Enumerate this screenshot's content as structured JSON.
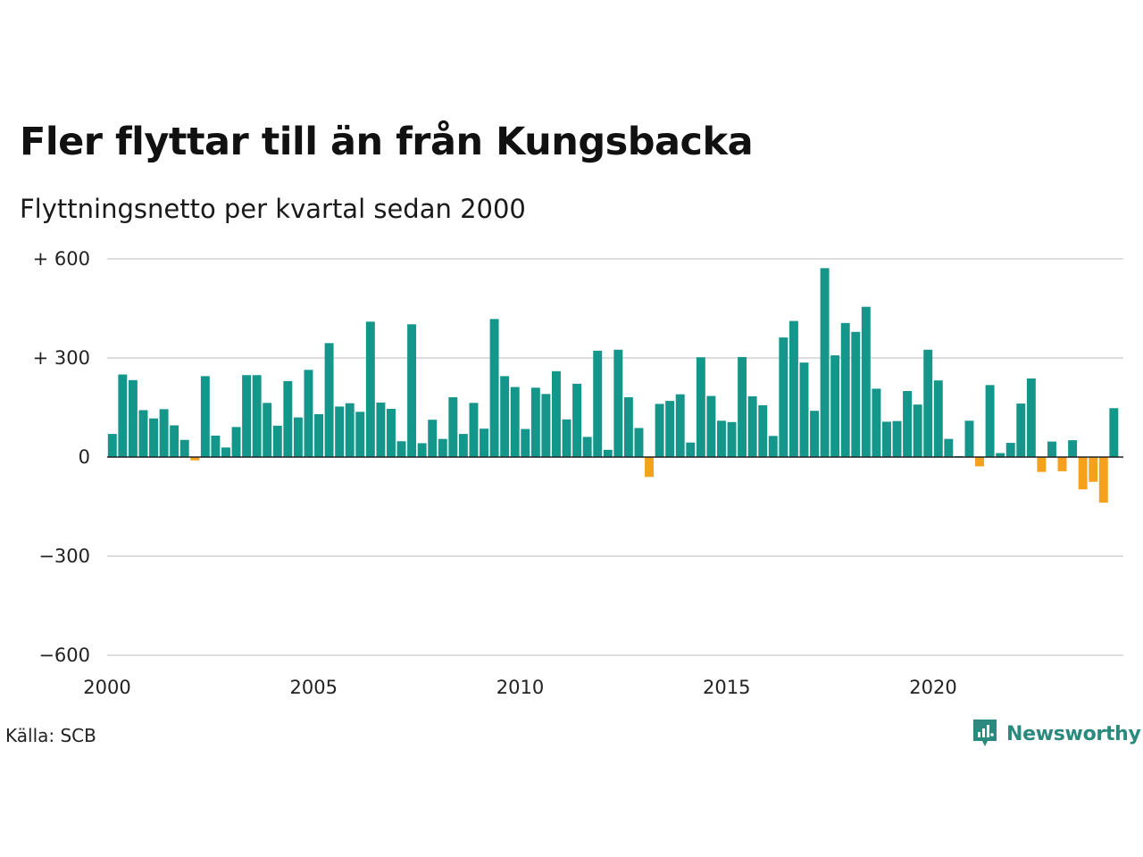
{
  "header": {
    "title": "Fler flyttar till än från Kungsbacka",
    "subtitle": "Flyttningsnetto per kvartal sedan 2000"
  },
  "footer": {
    "source": "Källa: SCB",
    "brand": "Newsworthy"
  },
  "colors": {
    "positive": "#15968a",
    "negative": "#f5a11c",
    "grid": "#dddddd",
    "baseline": "#222222",
    "brand": "#2a8a7d"
  },
  "icons": {
    "brand_logo": "newsworthy-logo-icon"
  },
  "chart_data": {
    "type": "bar",
    "title": "Fler flyttar till än från Kungsbacka",
    "subtitle": "Flyttningsnetto per kvartal sedan 2000",
    "xlabel": "",
    "ylabel": "",
    "ylim": [
      -600,
      600
    ],
    "yticks": [
      600,
      300,
      0,
      -300,
      -600
    ],
    "ytick_labels": [
      "+ 600",
      "+ 300",
      "0",
      "−300",
      "−600"
    ],
    "xlim": [
      2000,
      2024.75
    ],
    "xticks": [
      2000,
      2005,
      2010,
      2015,
      2020
    ],
    "xtick_labels": [
      "2000",
      "2005",
      "2010",
      "2015",
      "2020"
    ],
    "grid": true,
    "legend": "none",
    "series": [
      {
        "start": "2000 Q1",
        "frequency": "quarterly",
        "values": [
          70,
          250,
          233,
          142,
          117,
          145,
          96,
          52,
          -10,
          245,
          65,
          29,
          91,
          248,
          248,
          164,
          95,
          230,
          120,
          264,
          130,
          345,
          153,
          163,
          137,
          410,
          165,
          146,
          48,
          402,
          42,
          113,
          55,
          181,
          70,
          164,
          86,
          418,
          245,
          212,
          85,
          210,
          191,
          260,
          114,
          222,
          61,
          322,
          22,
          325,
          181,
          88,
          -60,
          161,
          170,
          190,
          44,
          302,
          185,
          110,
          106,
          303,
          184,
          157,
          64,
          362,
          412,
          286,
          140,
          572,
          308,
          406,
          379,
          455,
          207,
          107,
          109,
          200,
          159,
          325,
          232,
          55,
          3,
          110,
          -28,
          218,
          12,
          43,
          162,
          238,
          -45,
          47,
          -43,
          51,
          -98,
          -75,
          -138,
          148
        ]
      }
    ]
  }
}
